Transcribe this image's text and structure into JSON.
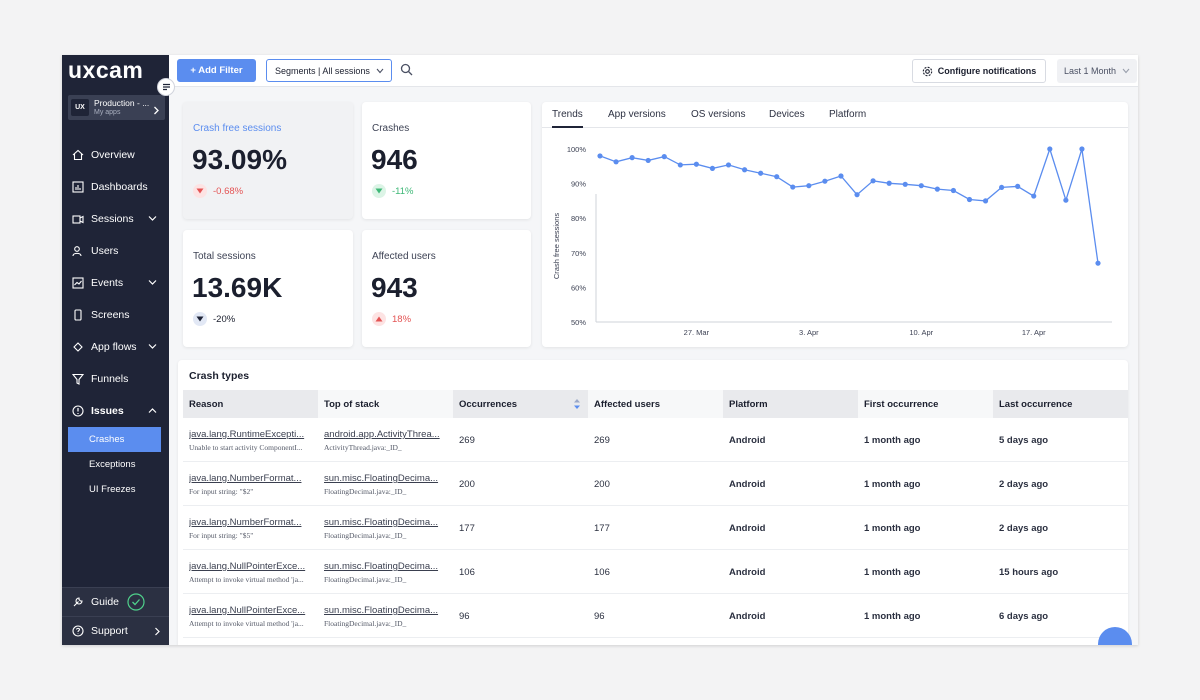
{
  "brand": {
    "logo_text": "uxcam",
    "accent": "#5b8def",
    "sidebar_bg": "#1f2437"
  },
  "app_switcher": {
    "badge": "UX",
    "name": "Production - ...",
    "subtitle": "My apps"
  },
  "nav": {
    "items": [
      {
        "label": "Overview",
        "icon": "home-icon"
      },
      {
        "label": "Dashboards",
        "icon": "dashboard-icon"
      },
      {
        "label": "Sessions",
        "icon": "sessions-icon",
        "expandable": true
      },
      {
        "label": "Users",
        "icon": "users-icon"
      },
      {
        "label": "Events",
        "icon": "events-icon",
        "expandable": true
      },
      {
        "label": "Screens",
        "icon": "screens-icon"
      },
      {
        "label": "App flows",
        "icon": "flows-icon",
        "expandable": true
      },
      {
        "label": "Funnels",
        "icon": "funnel-icon"
      },
      {
        "label": "Issues",
        "icon": "issues-icon",
        "expandable": true
      }
    ],
    "issues_sub": [
      {
        "label": "Crashes",
        "active": true
      },
      {
        "label": "Exceptions"
      },
      {
        "label": "UI Freezes"
      }
    ],
    "bottom": [
      {
        "label": "Guide",
        "icon": "wrench-icon"
      },
      {
        "label": "Support",
        "icon": "help-icon"
      }
    ]
  },
  "toolbar": {
    "add_filter": "+ Add Filter",
    "segments": "Segments | All sessions",
    "configure": "Configure notifications",
    "range": "Last 1 Month"
  },
  "kpis": [
    {
      "label": "Crash free sessions",
      "value": "93.09%",
      "delta": "-0.68%",
      "direction": "down",
      "good": false
    },
    {
      "label": "Crashes",
      "value": "946",
      "delta": "-11%",
      "direction": "down",
      "good": true
    },
    {
      "label": "Total sessions",
      "value": "13.69K",
      "delta": "-20%",
      "direction": "down",
      "neutral": true
    },
    {
      "label": "Affected users",
      "value": "943",
      "delta": "18%",
      "direction": "up",
      "good": false
    }
  ],
  "chart_tabs": [
    "Trends",
    "App versions",
    "OS versions",
    "Devices",
    "Platform"
  ],
  "chart_data": {
    "type": "line",
    "ylabel": "Crash free sessions",
    "ylim": [
      50,
      100
    ],
    "yticks": [
      "100%",
      "90%",
      "80%",
      "70%",
      "60%",
      "50%"
    ],
    "xticks": [
      "27. Mar",
      "3. Apr",
      "10. Apr",
      "17. Apr"
    ],
    "series": [
      {
        "name": "Crash free sessions",
        "values": [
          98,
          96.3,
          97.5,
          96.7,
          97.8,
          95.4,
          95.6,
          94.4,
          95.4,
          94,
          93,
          92,
          89,
          89.4,
          90.7,
          92.2,
          86.8,
          90.8,
          90.1,
          89.8,
          89.4,
          88.4,
          88,
          85.4,
          85,
          88.9,
          89.2,
          86.4,
          100,
          85.2,
          100,
          67
        ]
      }
    ],
    "color": "#5b8def"
  },
  "crash_table": {
    "title": "Crash types",
    "headers": [
      "Reason",
      "Top of stack",
      "Occurrences",
      "Affected users",
      "Platform",
      "First occurrence",
      "Last occurrence"
    ],
    "rows": [
      {
        "reason": "java.lang.RuntimeExcepti...",
        "reason_sub": "Unable to start activity ComponentI...",
        "stack": "android.app.ActivityThrea...",
        "stack_sub": "ActivityThread.java:_ID_",
        "occurrences": "269",
        "affected": "269",
        "platform": "Android",
        "first": "1 month ago",
        "last": "5 days ago"
      },
      {
        "reason": "java.lang.NumberFormat...",
        "reason_sub": "For input string: \"$2\"",
        "stack": "sun.misc.FloatingDecima...",
        "stack_sub": "FloatingDecimal.java:_ID_",
        "occurrences": "200",
        "affected": "200",
        "platform": "Android",
        "first": "1 month ago",
        "last": "2 days ago"
      },
      {
        "reason": "java.lang.NumberFormat...",
        "reason_sub": "For input string: \"$5\"",
        "stack": "sun.misc.FloatingDecima...",
        "stack_sub": "FloatingDecimal.java:_ID_",
        "occurrences": "177",
        "affected": "177",
        "platform": "Android",
        "first": "1 month ago",
        "last": "2 days ago"
      },
      {
        "reason": "java.lang.NullPointerExce...",
        "reason_sub": "Attempt to invoke virtual method 'ja...",
        "stack": "sun.misc.FloatingDecima...",
        "stack_sub": "FloatingDecimal.java:_ID_",
        "occurrences": "106",
        "affected": "106",
        "platform": "Android",
        "first": "1 month ago",
        "last": "15 hours ago"
      },
      {
        "reason": "java.lang.NullPointerExce...",
        "reason_sub": "Attempt to invoke virtual method 'ja...",
        "stack": "sun.misc.FloatingDecima...",
        "stack_sub": "FloatingDecimal.java:_ID_",
        "occurrences": "96",
        "affected": "96",
        "platform": "Android",
        "first": "1 month ago",
        "last": "6 days ago"
      }
    ]
  }
}
